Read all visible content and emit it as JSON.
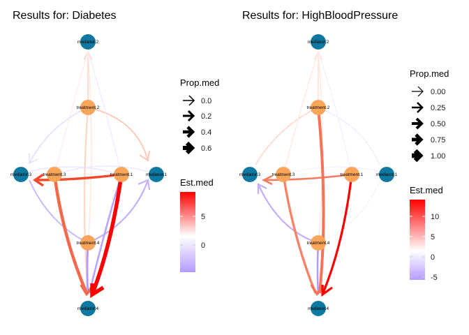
{
  "panels": [
    {
      "title": "Results for: Diabetes",
      "legends": {
        "prop_title": "Prop.med",
        "prop_labels": [
          "0.0",
          "0.2",
          "0.4",
          "0.6"
        ],
        "est_title": "Est.med",
        "est_labels": [
          "5",
          "0"
        ]
      }
    },
    {
      "title": "Results for: HighBloodPressure",
      "legends": {
        "prop_title": "Prop.med",
        "prop_labels": [
          "0.00",
          "0.25",
          "0.50",
          "0.75",
          "1.00"
        ],
        "est_title": "Est.med",
        "est_labels": [
          "10",
          "5",
          "0",
          "-5"
        ]
      }
    }
  ],
  "nodes": {
    "mediator_2": "mediator.2",
    "treatment_2": "treatment.2",
    "mediator_3": "mediator.3",
    "treatment_3": "treatment.3",
    "treatment_1": "treatment.1",
    "mediator_1": "mediator.1",
    "treatment_4": "treatment.4",
    "mediator_4": "mediator.4"
  },
  "colors": {
    "treatment_node": "#FBA55A",
    "mediator_node": "#0E78A0",
    "est_high": "#FF0000",
    "est_zero": "#FFFFFF",
    "est_low": "#B49BFF"
  }
}
